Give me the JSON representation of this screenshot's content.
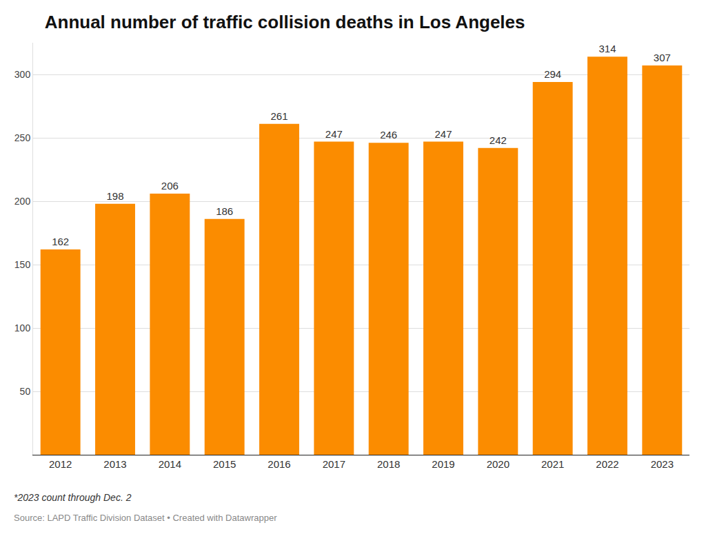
{
  "chart_data": {
    "type": "bar",
    "title": "Annual number of traffic collision deaths in Los Angeles",
    "categories": [
      "2012",
      "2013",
      "2014",
      "2015",
      "2016",
      "2017",
      "2018",
      "2019",
      "2020",
      "2021",
      "2022",
      "2023"
    ],
    "values": [
      162,
      198,
      206,
      186,
      261,
      247,
      246,
      247,
      242,
      294,
      314,
      307
    ],
    "color": "#fb8c00",
    "ylim": [
      0,
      325
    ],
    "yticks": [
      50,
      100,
      150,
      200,
      250,
      300
    ],
    "grid": true,
    "data_labels": true,
    "annotations": [
      "*2023 count through Dec. 2",
      "Source: LAPD Traffic Division Dataset • Created with Datawrapper"
    ]
  }
}
